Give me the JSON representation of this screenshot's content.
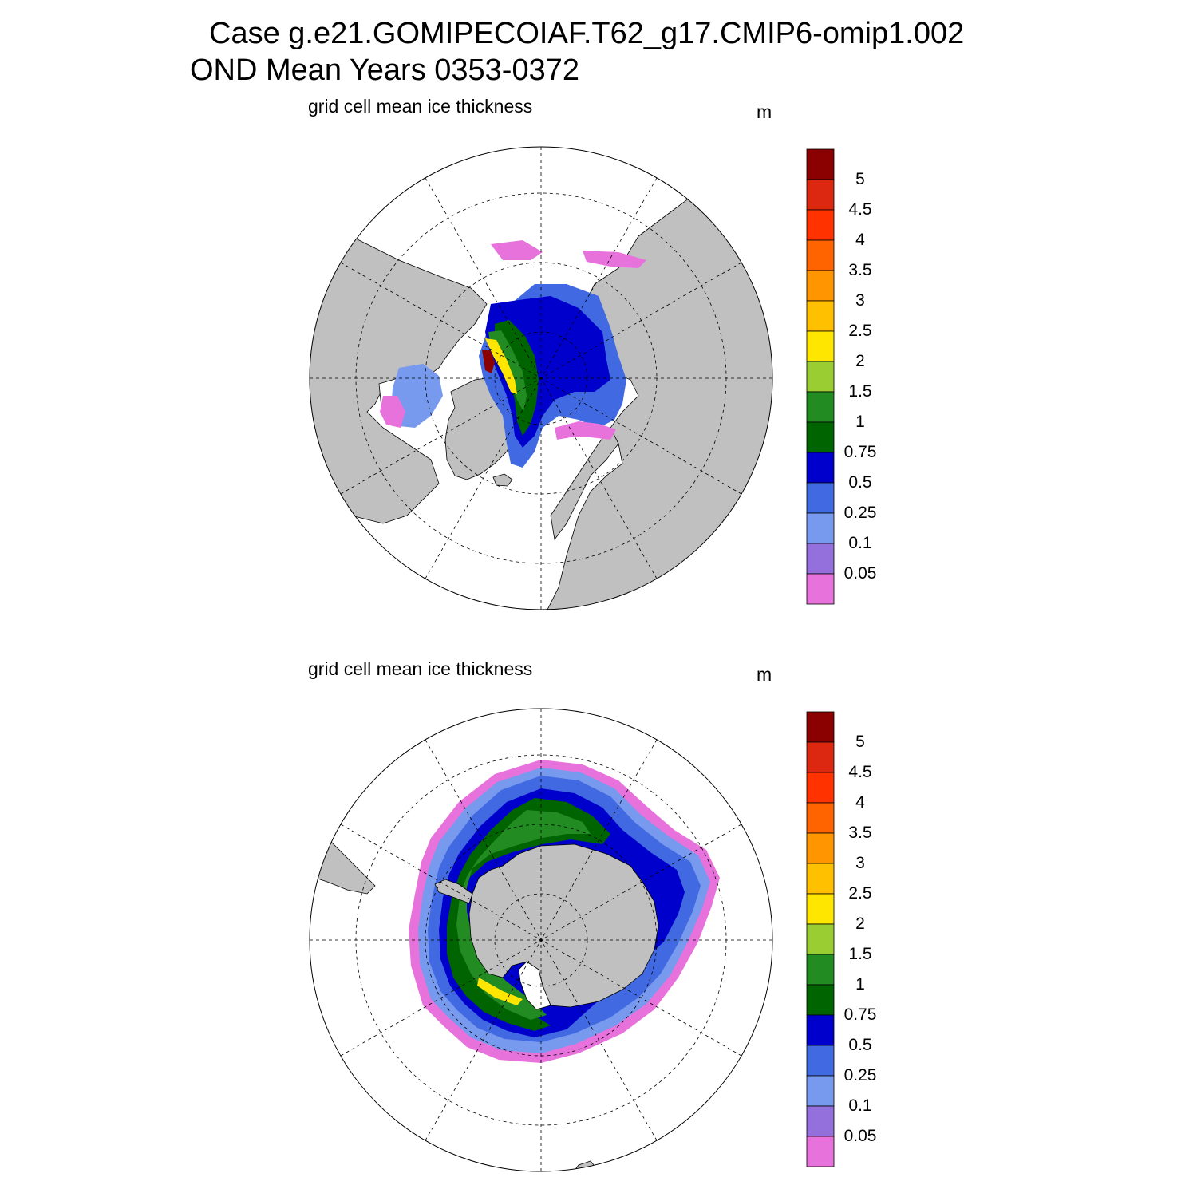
{
  "title": {
    "line1": "Case g.e21.GOMIPECOIAF.T62_g17.CMIP6-omip1.002",
    "line2": "OND Mean   Years 0353-0372"
  },
  "panels": [
    {
      "hemisphere": "north",
      "subtitle": "grid cell mean ice thickness",
      "units": "m"
    },
    {
      "hemisphere": "south",
      "subtitle": "grid cell mean ice thickness",
      "units": "m"
    }
  ],
  "colors": {
    "land": "#c0c0c0",
    "ocean": "#ffffff"
  },
  "colorbar": {
    "levels": [
      "0.05",
      "0.1",
      "0.25",
      "0.5",
      "0.75",
      "1",
      "1.5",
      "2",
      "2.5",
      "3",
      "3.5",
      "4",
      "4.5",
      "5"
    ],
    "colors": [
      "#e872dc",
      "#9370db",
      "#7799ee",
      "#4169e1",
      "#0000cd",
      "#006400",
      "#228b22",
      "#9acd32",
      "#ffe600",
      "#ffc000",
      "#ff9500",
      "#ff6400",
      "#ff3200",
      "#dc2810",
      "#8b0000"
    ]
  },
  "chart_data": {
    "type": "heatmap",
    "title": "Case g.e21.GOMIPECOIAF.T62_g17.CMIP6-omip1.002",
    "subtitle": "OND Mean   Years 0353-0372",
    "variable": "grid cell mean ice thickness",
    "units": "m",
    "contour_levels": [
      0.05,
      0.1,
      0.25,
      0.5,
      0.75,
      1,
      1.5,
      2,
      2.5,
      3,
      3.5,
      4,
      4.5,
      5
    ],
    "panels": [
      "Arctic (north polar stereographic)",
      "Antarctic (south polar stereographic)"
    ]
  }
}
